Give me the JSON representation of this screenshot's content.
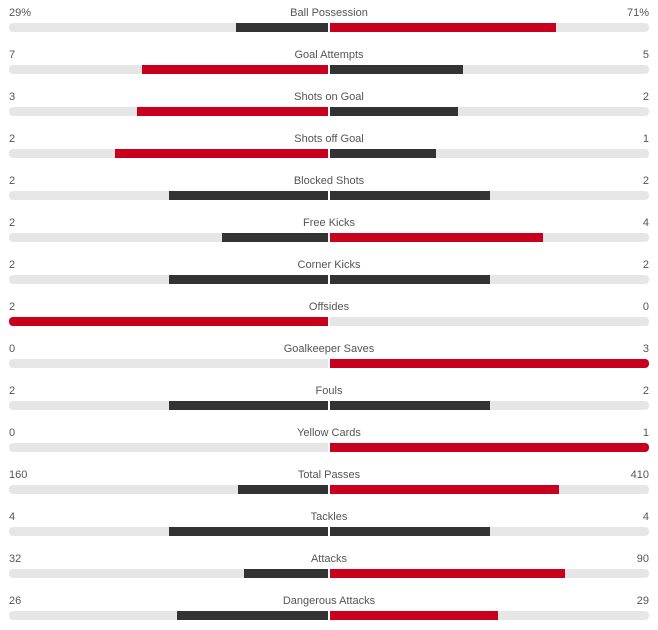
{
  "colors": {
    "leader": "#c8001e",
    "trailer": "#333333",
    "track": "#e6e6e6"
  },
  "stats": [
    {
      "label": "Ball Possession",
      "home": "29%",
      "away": "71%",
      "home_num": 29,
      "away_num": 71
    },
    {
      "label": "Goal Attempts",
      "home": "7",
      "away": "5",
      "home_num": 7,
      "away_num": 5
    },
    {
      "label": "Shots on Goal",
      "home": "3",
      "away": "2",
      "home_num": 3,
      "away_num": 2
    },
    {
      "label": "Shots off Goal",
      "home": "2",
      "away": "1",
      "home_num": 2,
      "away_num": 1
    },
    {
      "label": "Blocked Shots",
      "home": "2",
      "away": "2",
      "home_num": 2,
      "away_num": 2
    },
    {
      "label": "Free Kicks",
      "home": "2",
      "away": "4",
      "home_num": 2,
      "away_num": 4
    },
    {
      "label": "Corner Kicks",
      "home": "2",
      "away": "2",
      "home_num": 2,
      "away_num": 2
    },
    {
      "label": "Offsides",
      "home": "2",
      "away": "0",
      "home_num": 2,
      "away_num": 0
    },
    {
      "label": "Goalkeeper Saves",
      "home": "0",
      "away": "3",
      "home_num": 0,
      "away_num": 3
    },
    {
      "label": "Fouls",
      "home": "2",
      "away": "2",
      "home_num": 2,
      "away_num": 2
    },
    {
      "label": "Yellow Cards",
      "home": "0",
      "away": "1",
      "home_num": 0,
      "away_num": 1
    },
    {
      "label": "Total Passes",
      "home": "160",
      "away": "410",
      "home_num": 160,
      "away_num": 410
    },
    {
      "label": "Tackles",
      "home": "4",
      "away": "4",
      "home_num": 4,
      "away_num": 4
    },
    {
      "label": "Attacks",
      "home": "32",
      "away": "90",
      "home_num": 32,
      "away_num": 90
    },
    {
      "label": "Dangerous Attacks",
      "home": "26",
      "away": "29",
      "home_num": 26,
      "away_num": 29
    }
  ]
}
